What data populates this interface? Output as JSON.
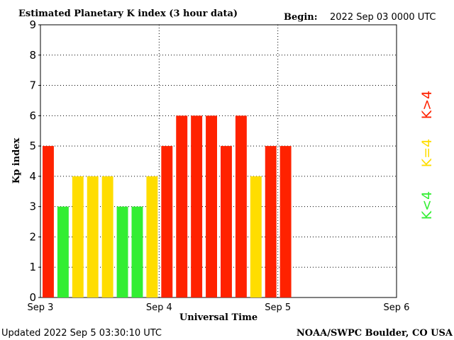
{
  "header": {
    "title": "Estimated Planetary K index (3 hour data)",
    "begin_label": "Begin:",
    "begin_value": "2022 Sep 03 0000 UTC"
  },
  "footer": {
    "updated": "Updated 2022 Sep  5 03:30:10 UTC",
    "source": "NOAA/SWPC Boulder, CO USA"
  },
  "legend": {
    "high": "K>4",
    "mid": "K=4",
    "low": "K<4"
  },
  "colors": {
    "high": "#ff2200",
    "mid": "#ffdd00",
    "low": "#33ee33",
    "grid": "#000000",
    "axis": "#000000"
  },
  "chart_data": {
    "type": "bar",
    "title": "Estimated Planetary K index (3 hour data)",
    "xlabel": "Universal Time",
    "ylabel": "Kp index",
    "ylim": [
      0,
      9
    ],
    "yticks": [
      "0",
      "1",
      "2",
      "3",
      "4",
      "5",
      "6",
      "7",
      "8",
      "9"
    ],
    "xticks": [
      "Sep 3",
      "Sep 4",
      "Sep 5",
      "Sep 6"
    ],
    "slots_total": 24,
    "grid": true,
    "values": [
      5,
      3,
      4,
      4,
      4,
      3,
      3,
      4,
      5,
      6,
      6,
      6,
      5,
      6,
      4,
      5,
      5
    ]
  }
}
